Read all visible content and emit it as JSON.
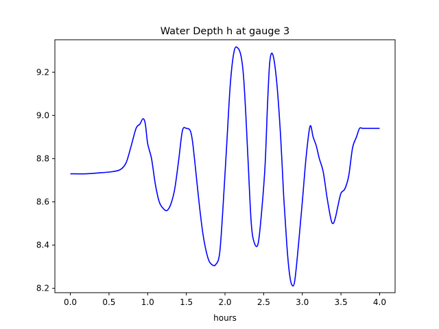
{
  "chart_data": {
    "type": "line",
    "title": "Water Depth h at gauge 3",
    "xlabel": "hours",
    "ylabel": "",
    "xlim": [
      -0.2,
      4.2
    ],
    "ylim": [
      8.18,
      9.35
    ],
    "grid": false,
    "xticks": [
      0.0,
      0.5,
      1.0,
      1.5,
      2.0,
      2.5,
      3.0,
      3.5,
      4.0
    ],
    "xtick_labels": [
      "0.0",
      "0.5",
      "1.0",
      "1.5",
      "2.0",
      "2.5",
      "3.0",
      "3.5",
      "4.0"
    ],
    "yticks": [
      8.2,
      8.4,
      8.6,
      8.8,
      9.0,
      9.2
    ],
    "ytick_labels": [
      "8.2",
      "8.4",
      "8.6",
      "8.8",
      "9.0",
      "9.2"
    ],
    "series": [
      {
        "color": "#0000ff",
        "x": [
          0.0,
          0.2,
          0.4,
          0.55,
          0.65,
          0.72,
          0.78,
          0.85,
          0.9,
          0.94,
          0.97,
          1.0,
          1.05,
          1.1,
          1.15,
          1.2,
          1.25,
          1.3,
          1.35,
          1.4,
          1.45,
          1.5,
          1.55,
          1.58,
          1.62,
          1.67,
          1.72,
          1.78,
          1.83,
          1.88,
          1.93,
          1.97,
          2.02,
          2.07,
          2.12,
          2.17,
          2.21,
          2.24,
          2.27,
          2.3,
          2.34,
          2.38,
          2.43,
          2.48,
          2.52,
          2.55,
          2.58,
          2.62,
          2.67,
          2.72,
          2.76,
          2.8,
          2.83,
          2.86,
          2.9,
          2.95,
          3.0,
          3.05,
          3.1,
          3.14,
          3.18,
          3.22,
          3.27,
          3.32,
          3.37,
          3.4,
          3.43,
          3.46,
          3.5,
          3.55,
          3.6,
          3.65,
          3.7,
          3.74,
          3.78,
          3.82,
          3.87,
          3.9,
          3.94,
          3.98,
          4.0
        ],
        "y": [
          8.73,
          8.73,
          8.735,
          8.74,
          8.75,
          8.78,
          8.85,
          8.94,
          8.96,
          8.985,
          8.96,
          8.87,
          8.8,
          8.68,
          8.6,
          8.57,
          8.56,
          8.59,
          8.66,
          8.79,
          8.93,
          8.94,
          8.93,
          8.88,
          8.75,
          8.58,
          8.44,
          8.34,
          8.31,
          8.31,
          8.36,
          8.55,
          8.85,
          9.15,
          9.3,
          9.31,
          9.27,
          9.18,
          9.0,
          8.78,
          8.5,
          8.41,
          8.41,
          8.58,
          8.78,
          9.05,
          9.25,
          9.28,
          9.15,
          8.9,
          8.62,
          8.4,
          8.28,
          8.22,
          8.23,
          8.4,
          8.6,
          8.81,
          8.95,
          8.9,
          8.86,
          8.8,
          8.74,
          8.62,
          8.52,
          8.5,
          8.53,
          8.58,
          8.64,
          8.66,
          8.72,
          8.85,
          8.9,
          8.94,
          8.94,
          8.94,
          8.94,
          8.94,
          8.94,
          8.94,
          8.94
        ]
      }
    ]
  }
}
